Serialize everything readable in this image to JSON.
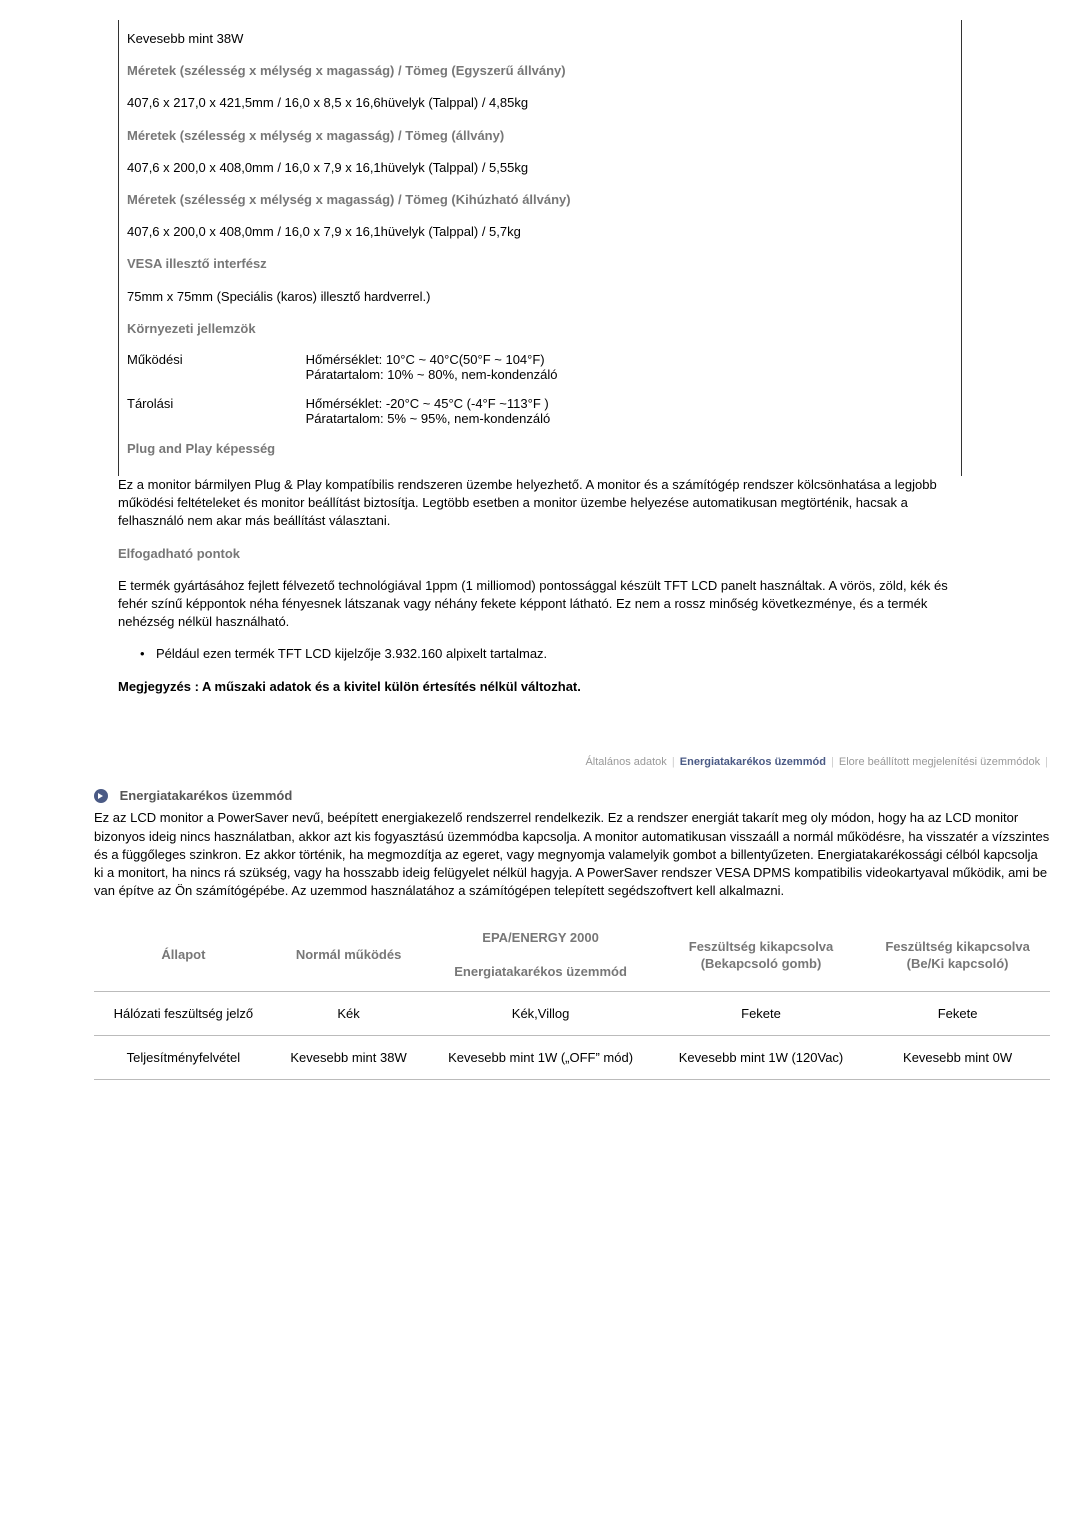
{
  "spec": {
    "power_less": "Kevesebb mint 38W",
    "dim_simple_label": "Méretek (szélesség x mélység x magasság) / Tömeg (Egyszerű állvány)",
    "dim_simple_val": "407,6 x 217,0 x 421,5mm / 16,0 x 8,5 x 16,6hüvelyk (Talppal) / 4,85kg",
    "dim_stand_label": "Méretek (szélesség x mélység x magasság) / Tömeg (állvány)",
    "dim_stand_val": "407,6 x 200,0 x 408,0mm / 16,0 x 7,9 x 16,1hüvelyk (Talppal) / 5,55kg",
    "dim_ext_label": "Méretek (szélesség x mélység x magasság) / Tömeg (Kihúzható állvány)",
    "dim_ext_val": "407,6 x 200,0 x 408,0mm / 16,0 x 7,9 x 16,1hüvelyk (Talppal) / 5,7kg",
    "vesa_label": "VESA illesztő interfész",
    "vesa_val": "75mm x 75mm (Speciális (karos) illesztő hardverrel.)",
    "env_label": "Környezeti jellemzök",
    "op_label": "Működési",
    "op_val1": "Hőmérséklet: 10°C ~ 40°C(50°F ~ 104°F)",
    "op_val2": "Páratartalom: 10% ~ 80%, nem-kondenzáló",
    "st_label": "Tárolási",
    "st_val1": "Hőmérséklet: -20°C ~ 45°C (-4°F ~113°F )",
    "st_val2": "Páratartalom: 5% ~ 95%, nem-kondenzáló",
    "pnp_label": "Plug and Play képesség",
    "pnp_text": "Ez a monitor bármilyen Plug & Play kompatíbilis rendszeren üzembe helyezhető. A monitor és a számítógép rendszer kölcsönhatása a legjobb működési feltételeket és monitor beállítást biztosítja. Legtöbb esetben a monitor üzembe helyezése automatikusan megtörténik, hacsak a felhasználó nem akar más beállítást választani.",
    "dots_label": "Elfogadható pontok",
    "dots_text": "E termék gyártásához fejlett félvezető technológiával 1ppm (1 milliomod) pontossággal készült TFT LCD panelt használtak. A vörös, zöld, kék és fehér színű képpontok néha fényesnek látszanak vagy néhány fekete képpont látható. Ez nem a rossz minőség következménye, és a termék nehézség nélkül használható.",
    "dots_bullet": "Például ezen termék TFT LCD kijelzője 3.932.160 alpixelt tartalmaz.",
    "disclaimer": "Megjegyzés : A műszaki adatok és a kivitel külön értesítés nélkül változhat."
  },
  "tabs": {
    "t1": "Általános adatok",
    "t2": "Energiatakarékos üzemmód",
    "t3": "Elore beállított megjelenítési üzemmódok"
  },
  "power": {
    "title": "Energiatakarékos üzemmód",
    "body": "Ez az LCD monitor a PowerSaver nevű, beépített energiakezelő rendszerrel rendelkezik. Ez a rendszer energiát takarít meg oly módon, hogy ha az LCD monitor bizonyos ideig nincs használatban, akkor azt kis fogyasztású üzemmódba kapcsolja. A monitor automatikusan visszaáll a normál működésre, ha visszatér a vízszintes és a függőleges szinkron. Ez akkor történik, ha megmozdítja az egeret, vagy megnyomja valamelyik gombot a billentyűzeten. Energiatakarékossági célból kapcsolja ki a monitort, ha nincs rá szükség, vagy ha hosszabb ideig felügyelet nélkül hagyja. A PowerSaver rendszer VESA DPMS kompatibilis videokartyaval működik, ami be van építve az Ön számítógépébe. Az uzemmod használatához a számítógépen telepített segédszoftvert kell alkalmazni.",
    "table": {
      "h1": "Állapot",
      "h2": "Normál működés",
      "h3a": "EPA/ENERGY 2000",
      "h3b": "Energiatakarékos üzemmód",
      "h4a": "Feszültség kikapcsolva",
      "h4b": "(Bekapcsoló gomb)",
      "h5a": "Feszültség kikapcsolva",
      "h5b": "(Be/Ki kapcsoló)",
      "r1c1": "Hálózati feszültség jelző",
      "r1c2": "Kék",
      "r1c3": "Kék,Villog",
      "r1c4": "Fekete",
      "r1c5": "Fekete",
      "r2c1": "Teljesítményfelvétel",
      "r2c2": "Kevesebb mint 38W",
      "r2c3": "Kevesebb mint 1W („OFF” mód)",
      "r2c4": "Kevesebb mint 1W (120Vac)",
      "r2c5": "Kevesebb mint 0W"
    }
  }
}
